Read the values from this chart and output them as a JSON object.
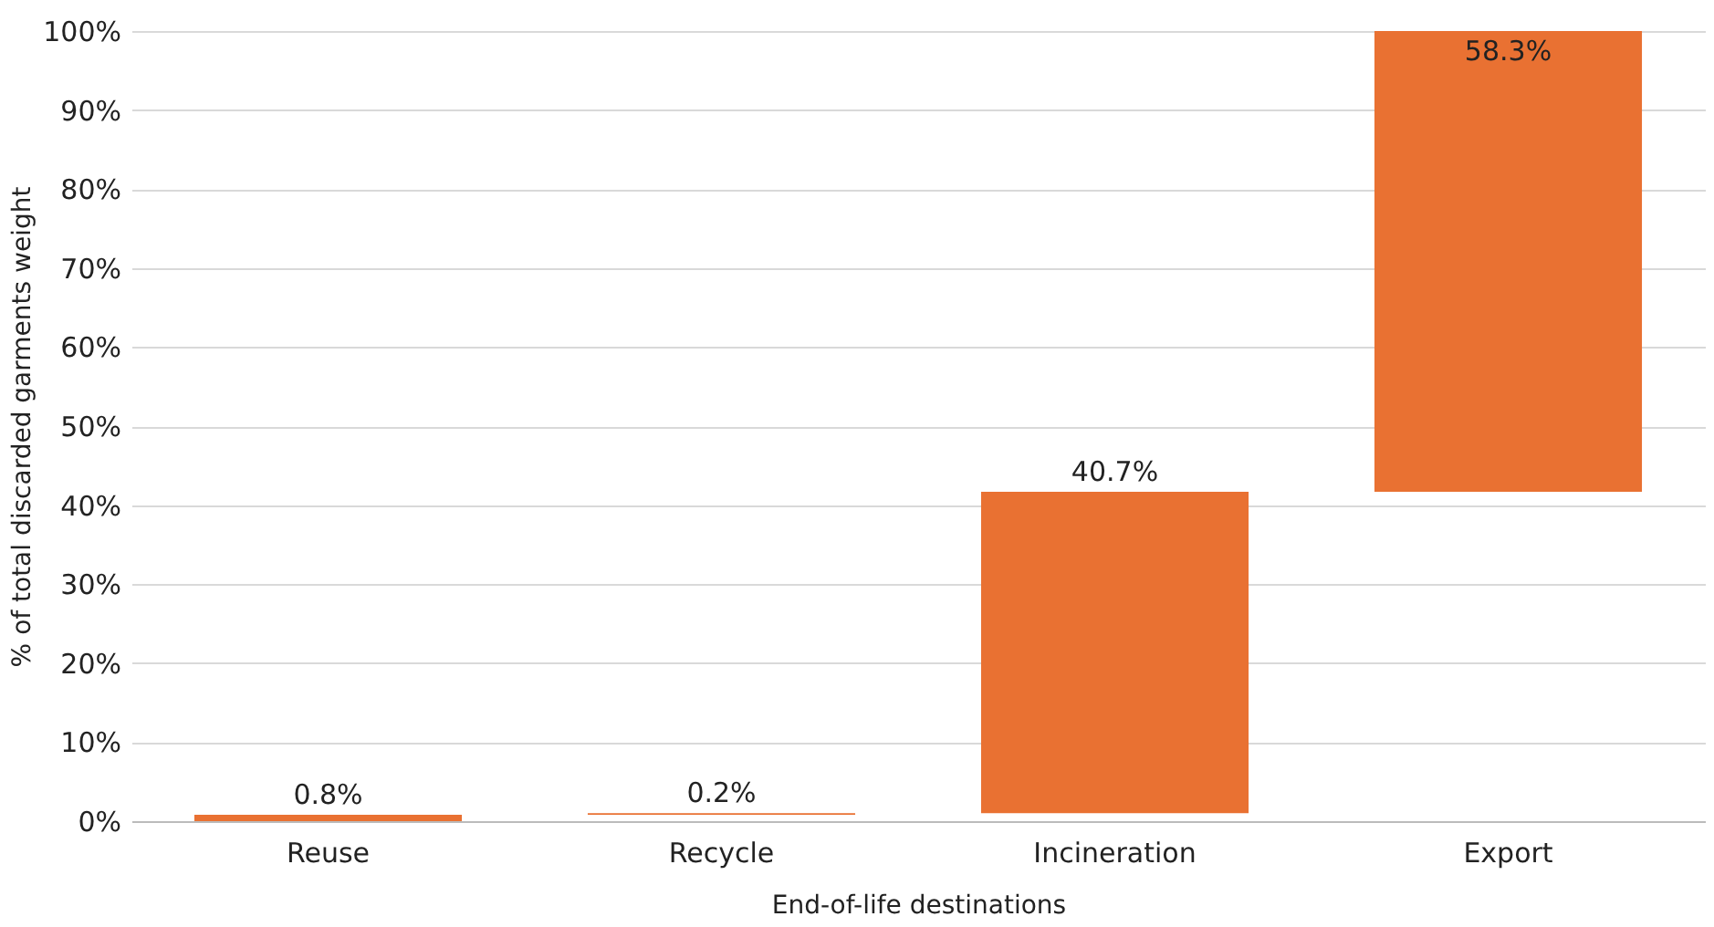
{
  "chart_data": {
    "type": "bar",
    "xlabel": "End-of-life destinations",
    "ylabel": "% of total discarded garments weight",
    "categories": [
      "Reuse",
      "Recycle",
      "Incineration",
      "Export"
    ],
    "values": [
      0.8,
      0.2,
      40.7,
      58.3
    ],
    "base": [
      0,
      0.8,
      1.0,
      41.7
    ],
    "value_labels": [
      "0.8%",
      "0.2%",
      "40.7%",
      "58.3%"
    ],
    "color": "#e97132",
    "ylim": [
      0,
      100
    ],
    "yticks": [
      {
        "value": 0,
        "label": "0%"
      },
      {
        "value": 10,
        "label": "10%"
      },
      {
        "value": 20,
        "label": "20%"
      },
      {
        "value": 30,
        "label": "30%"
      },
      {
        "value": 40,
        "label": "40%"
      },
      {
        "value": 50,
        "label": "50%"
      },
      {
        "value": 60,
        "label": "60%"
      },
      {
        "value": 70,
        "label": "70%"
      },
      {
        "value": 80,
        "label": "80%"
      },
      {
        "value": 90,
        "label": "90%"
      },
      {
        "value": 100,
        "label": "100%"
      }
    ],
    "grid": "y"
  }
}
